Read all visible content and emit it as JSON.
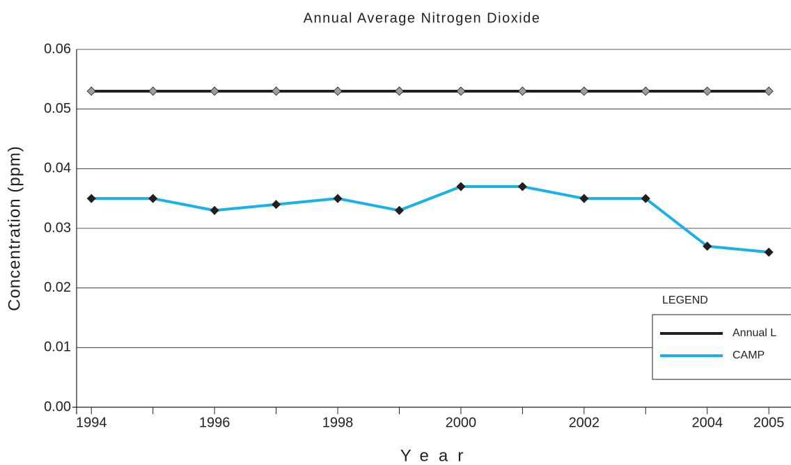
{
  "chart_data": {
    "type": "line",
    "title": "Annual Average Nitrogen Dioxide",
    "x_label": "Year",
    "y_label": "Concentration (ppm)",
    "x": [
      1994,
      1995,
      1996,
      1997,
      1998,
      1999,
      2000,
      2001,
      2002,
      2003,
      2004,
      2005
    ],
    "series": [
      {
        "name": "Annual L",
        "color": "#231f20",
        "marker_color": "#9d9d9d",
        "values": [
          0.053,
          0.053,
          0.053,
          0.053,
          0.053,
          0.053,
          0.053,
          0.053,
          0.053,
          0.053,
          0.053,
          0.053
        ]
      },
      {
        "name": "CAMP",
        "color": "#1ab0e8",
        "marker_color": "#231f20",
        "values": [
          0.035,
          0.035,
          0.033,
          0.034,
          0.035,
          0.033,
          0.037,
          0.037,
          0.035,
          0.035,
          0.027,
          0.026
        ]
      }
    ],
    "xlim": [
      1993.76,
      2005.36
    ],
    "xticks": [
      1994,
      1996,
      1998,
      2000,
      2002,
      2004,
      2005
    ],
    "ylim": [
      0,
      0.06
    ],
    "yticks": [
      {
        "value": 0,
        "label": "0.00"
      },
      0.01,
      0.02,
      0.03,
      0.04,
      0.05,
      0.06
    ],
    "grid": true,
    "legend_title": "LEGEND",
    "legend_position": "lower right"
  }
}
